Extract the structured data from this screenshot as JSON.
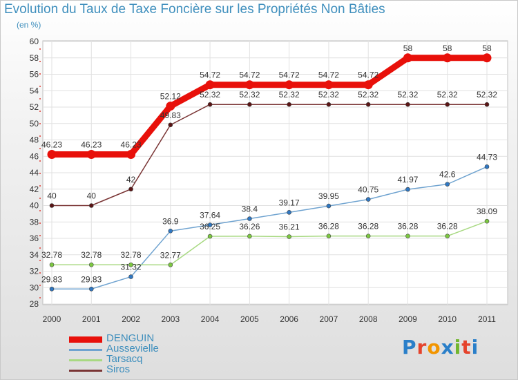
{
  "title": "Evolution du Taux de Taxe Foncière sur les Propriétés Non Bâties",
  "unit": "(en %)",
  "logo_text": "Proxiti",
  "logo_colors": [
    "#2a7fc9",
    "#e5432c",
    "#f29500",
    "#2a7fc9",
    "#72b62f",
    "#e5432c",
    "#2a7fc9"
  ],
  "chart_data": {
    "type": "line",
    "title": "Evolution du Taux de Taxe Foncière sur les Propriétés Non Bâties",
    "ylabel": "(en %)",
    "xlabel": "",
    "x": [
      "2000",
      "2001",
      "2002",
      "2003",
      "2004",
      "2005",
      "2006",
      "2007",
      "2008",
      "2009",
      "2010",
      "2011"
    ],
    "ylim": [
      28,
      60
    ],
    "yticks": [
      28,
      30,
      32,
      34,
      36,
      38,
      40,
      42,
      44,
      46,
      48,
      50,
      52,
      54,
      56,
      58,
      60
    ],
    "grid": true,
    "legend_position": "bottom-left",
    "series": [
      {
        "name": "DENGUIN",
        "color": "#e8100a",
        "point_color": "#e8100a",
        "values": [
          46.23,
          46.23,
          46.23,
          52.12,
          54.72,
          54.72,
          54.72,
          54.72,
          54.72,
          58,
          58,
          58
        ],
        "labels": [
          "46.23",
          "46.23",
          "46.23",
          "52.12",
          "54.72",
          "54.72",
          "54.72",
          "54.72",
          "54.72",
          "58",
          "58",
          "58"
        ]
      },
      {
        "name": "Aussevielle",
        "color": "#6fa3d0",
        "point_color": "#2f77c2",
        "values": [
          29.83,
          29.83,
          31.32,
          36.9,
          37.64,
          38.4,
          39.17,
          39.95,
          40.75,
          41.97,
          42.6,
          44.73
        ],
        "labels": [
          "29.83",
          "29.83",
          "31.32",
          "36.9",
          "37.64",
          "38.4",
          "39.17",
          "39.95",
          "40.75",
          "41.97",
          "42.6",
          "44.73"
        ]
      },
      {
        "name": "Tarsacq",
        "color": "#a8d982",
        "point_color": "#7cc840",
        "values": [
          32.78,
          32.78,
          32.78,
          32.77,
          36.25,
          36.26,
          36.21,
          36.28,
          36.28,
          36.28,
          36.28,
          38.09
        ],
        "labels": [
          "32.78",
          "32.78",
          "32.78",
          "32.77",
          "36.25",
          "36.26",
          "36.21",
          "36.28",
          "36.28",
          "36.28",
          "36.28",
          "38.09"
        ]
      },
      {
        "name": "Siros",
        "color": "#7a3535",
        "point_color": "#5a1414",
        "values": [
          40,
          40,
          42,
          49.83,
          52.32,
          52.32,
          52.32,
          52.32,
          52.32,
          52.32,
          52.32,
          52.32
        ],
        "labels": [
          "40",
          "40",
          "42",
          "49.83",
          "52.32",
          "52.32",
          "52.32",
          "52.32",
          "52.32",
          "52.32",
          "52.32",
          "52.32"
        ]
      }
    ]
  }
}
